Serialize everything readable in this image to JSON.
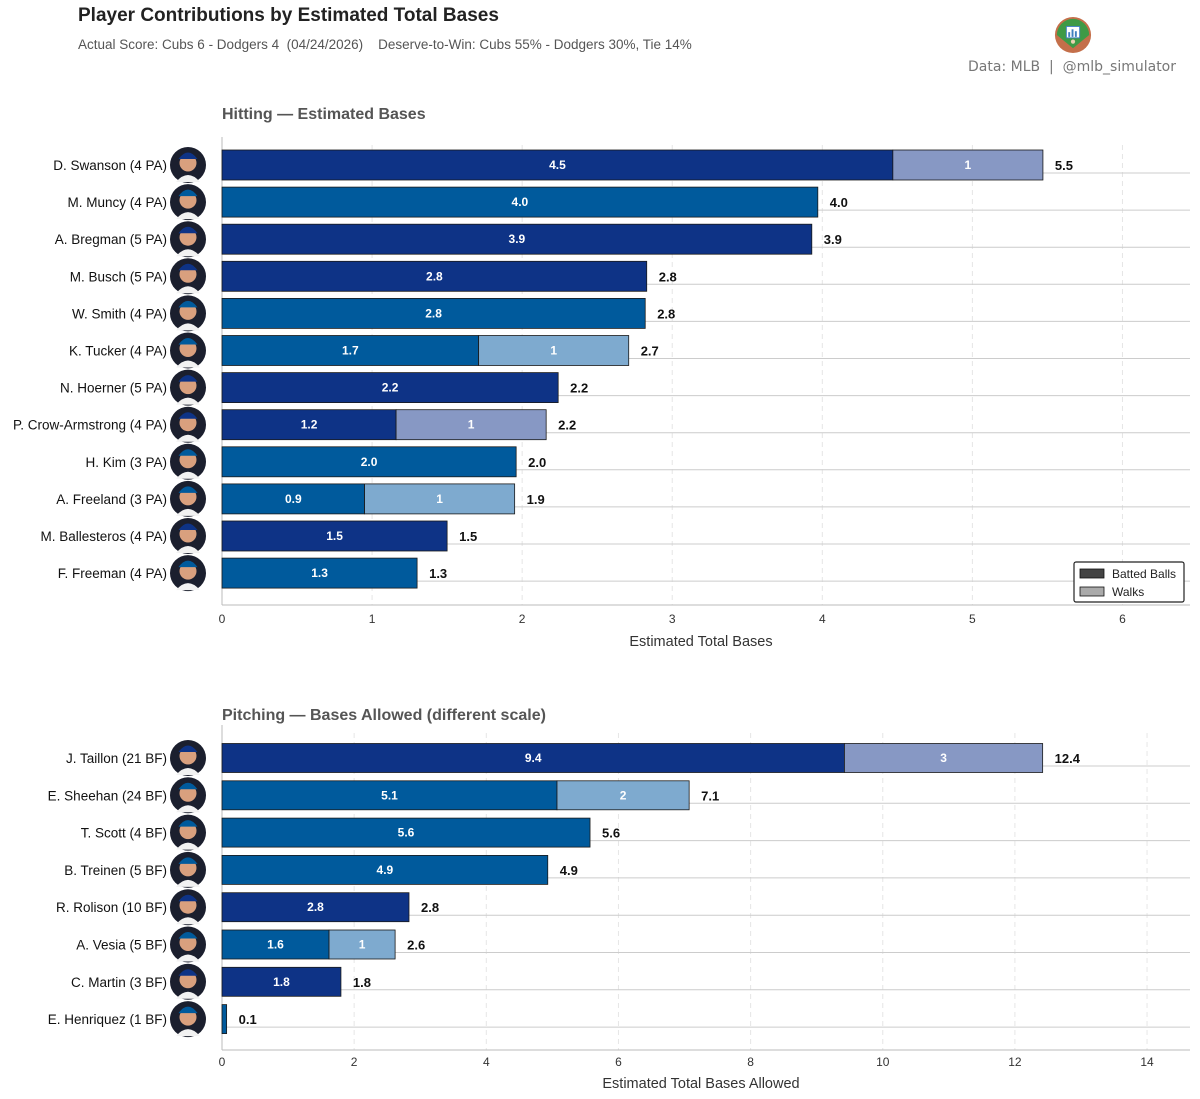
{
  "header": {
    "title": "Player Contributions by Estimated Total Bases",
    "subtitle": "Actual Score: Cubs 6 - Dodgers 4  (04/24/2026)    Deserve-to-Win: Cubs 55% - Dodgers 30%, Tie 14%",
    "credit": "Data: MLB  |  @mlb_simulator",
    "logo_icon": "baseball-field-logo-icon"
  },
  "colors": {
    "cubs_primary": "#0e3386",
    "cubs_secondary": "#8798c4",
    "dodgers_primary": "#005a9c",
    "dodgers_secondary": "#7eaacf",
    "legend_primary": "#444444",
    "legend_secondary": "#aaaaaa",
    "grid": "#cccccc"
  },
  "chart_data": [
    {
      "type": "bar",
      "orientation": "horizontal",
      "stacked": true,
      "title": "Hitting — Estimated Bases",
      "xlabel": "Estimated Total Bases",
      "xlim": [
        0,
        6.45
      ],
      "xticks": [
        0,
        1,
        2,
        3,
        4,
        5,
        6
      ],
      "legend": {
        "placement": "bottom-right",
        "entries": [
          "Batted Balls",
          "Walks"
        ]
      },
      "rows": [
        {
          "label": "D. Swanson  (4 PA)",
          "team": "cubs",
          "batted": 4.47,
          "walks": 1,
          "batted_label": "4.5",
          "walks_label": "1",
          "total_label": "5.5"
        },
        {
          "label": "M. Muncy  (4 PA)",
          "team": "dodgers",
          "batted": 3.97,
          "walks": 0,
          "batted_label": "4.0",
          "walks_label": "",
          "total_label": "4.0"
        },
        {
          "label": "A. Bregman  (5 PA)",
          "team": "cubs",
          "batted": 3.93,
          "walks": 0,
          "batted_label": "3.9",
          "walks_label": "",
          "total_label": "3.9"
        },
        {
          "label": "M. Busch  (5 PA)",
          "team": "cubs",
          "batted": 2.83,
          "walks": 0,
          "batted_label": "2.8",
          "walks_label": "",
          "total_label": "2.8"
        },
        {
          "label": "W. Smith  (4 PA)",
          "team": "dodgers",
          "batted": 2.82,
          "walks": 0,
          "batted_label": "2.8",
          "walks_label": "",
          "total_label": "2.8"
        },
        {
          "label": "K. Tucker  (4 PA)",
          "team": "dodgers",
          "batted": 1.71,
          "walks": 1,
          "batted_label": "1.7",
          "walks_label": "1",
          "total_label": "2.7"
        },
        {
          "label": "N. Hoerner  (5 PA)",
          "team": "cubs",
          "batted": 2.24,
          "walks": 0,
          "batted_label": "2.2",
          "walks_label": "",
          "total_label": "2.2"
        },
        {
          "label": "P. Crow-Armstrong  (4 PA)",
          "team": "cubs",
          "batted": 1.16,
          "walks": 1,
          "batted_label": "1.2",
          "walks_label": "1",
          "total_label": "2.2"
        },
        {
          "label": "H. Kim  (3 PA)",
          "team": "dodgers",
          "batted": 1.96,
          "walks": 0,
          "batted_label": "2.0",
          "walks_label": "",
          "total_label": "2.0"
        },
        {
          "label": "A. Freeland  (3 PA)",
          "team": "dodgers",
          "batted": 0.95,
          "walks": 1,
          "batted_label": "0.9",
          "walks_label": "1",
          "total_label": "1.9"
        },
        {
          "label": "M. Ballesteros  (4 PA)",
          "team": "cubs",
          "batted": 1.5,
          "walks": 0,
          "batted_label": "1.5",
          "walks_label": "",
          "total_label": "1.5"
        },
        {
          "label": "F. Freeman  (4 PA)",
          "team": "dodgers",
          "batted": 1.3,
          "walks": 0,
          "batted_label": "1.3",
          "walks_label": "",
          "total_label": "1.3"
        }
      ]
    },
    {
      "type": "bar",
      "orientation": "horizontal",
      "stacked": true,
      "title": "Pitching — Bases Allowed  (different scale)",
      "xlabel": "Estimated Total Bases Allowed",
      "xlim": [
        0,
        14.65
      ],
      "xticks": [
        0,
        2,
        4,
        6,
        8,
        10,
        12,
        14
      ],
      "rows": [
        {
          "label": "J. Taillon  (21 BF)",
          "team": "cubs",
          "batted": 9.42,
          "walks": 3,
          "batted_label": "9.4",
          "walks_label": "3",
          "total_label": "12.4"
        },
        {
          "label": "E. Sheehan  (24 BF)",
          "team": "dodgers",
          "batted": 5.07,
          "walks": 2,
          "batted_label": "5.1",
          "walks_label": "2",
          "total_label": "7.1"
        },
        {
          "label": "T. Scott  (4 BF)",
          "team": "dodgers",
          "batted": 5.57,
          "walks": 0,
          "batted_label": "5.6",
          "walks_label": "",
          "total_label": "5.6"
        },
        {
          "label": "B. Treinen  (5 BF)",
          "team": "dodgers",
          "batted": 4.93,
          "walks": 0,
          "batted_label": "4.9",
          "walks_label": "",
          "total_label": "4.9"
        },
        {
          "label": "R. Rolison  (10 BF)",
          "team": "cubs",
          "batted": 2.83,
          "walks": 0,
          "batted_label": "2.8",
          "walks_label": "",
          "total_label": "2.8"
        },
        {
          "label": "A. Vesia  (5 BF)",
          "team": "dodgers",
          "batted": 1.62,
          "walks": 1,
          "batted_label": "1.6",
          "walks_label": "1",
          "total_label": "2.6"
        },
        {
          "label": "C. Martin  (3 BF)",
          "team": "cubs",
          "batted": 1.8,
          "walks": 0,
          "batted_label": "1.8",
          "walks_label": "",
          "total_label": "1.8"
        },
        {
          "label": "E. Henriquez  (1 BF)",
          "team": "dodgers",
          "batted": 0.07,
          "walks": 0,
          "batted_label": "",
          "walks_label": "",
          "total_label": "0.1"
        }
      ]
    }
  ]
}
